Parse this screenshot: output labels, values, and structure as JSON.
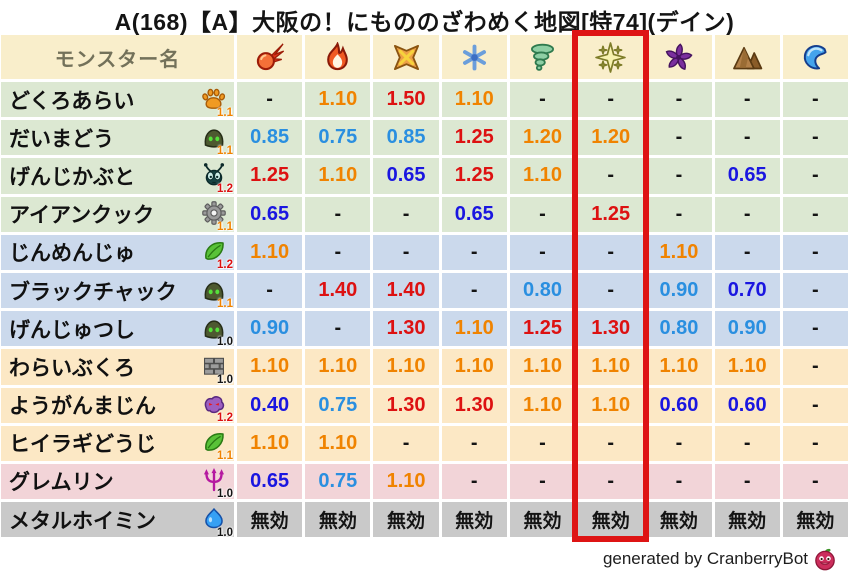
{
  "title": "A(168)【A】大阪の！にもののざわめく地図[特74](デイン)",
  "footer": {
    "credit": "generated by CranberryBot",
    "icon": "cranberry"
  },
  "colors": {
    "accent_red_box": "#de1414",
    "value_strong_weakness": "#dd1111",
    "value_mild_weakness": "#f08300",
    "value_mild_resist": "#2a8fe0",
    "value_strong_resist": "#1a16e0",
    "value_neutral": "#141414",
    "header_bg": "#f9eecb",
    "row_backgrounds": {
      "green": "#dce8d2",
      "blue": "#cbd9ec",
      "peach": "#fce8c5",
      "pink": "#f2d4d8",
      "gray": "#c9c9c9"
    }
  },
  "chart_data": {
    "type": "table",
    "title": "A(168)【A】大阪の！にもののざわめく地図[特74](デイン)",
    "column_header": "モンスター名",
    "element_columns": [
      "fireball",
      "flame",
      "explosion",
      "snowflake",
      "tornado",
      "spark",
      "pinwheel",
      "mountain",
      "wave"
    ],
    "highlighted_column_index": 5,
    "highlighted_column": "spark",
    "immune_label": "無効",
    "rows": [
      {
        "name": "どくろあらい",
        "family_icon": "paw",
        "modifier": "1.1",
        "row_color": "green",
        "values": [
          "-",
          "1.10",
          "1.50",
          "1.10",
          "-",
          "-",
          "-",
          "-",
          "-"
        ]
      },
      {
        "name": "だいまどう",
        "family_icon": "hood",
        "modifier": "1.1",
        "row_color": "green",
        "values": [
          "0.85",
          "0.75",
          "0.85",
          "1.25",
          "1.20",
          "1.20",
          "-",
          "-",
          "-"
        ]
      },
      {
        "name": "げんじかぶと",
        "family_icon": "bug",
        "modifier": "1.2",
        "row_color": "green",
        "values": [
          "1.25",
          "1.10",
          "0.65",
          "1.25",
          "1.10",
          "-",
          "-",
          "0.65",
          "-"
        ]
      },
      {
        "name": "アイアンクック",
        "family_icon": "gear",
        "modifier": "1.1",
        "row_color": "green",
        "values": [
          "0.65",
          "-",
          "-",
          "0.65",
          "-",
          "1.25",
          "-",
          "-",
          "-"
        ]
      },
      {
        "name": "じんめんじゅ",
        "family_icon": "leaf",
        "modifier": "1.2",
        "row_color": "blue",
        "values": [
          "1.10",
          "-",
          "-",
          "-",
          "-",
          "-",
          "1.10",
          "-",
          "-"
        ]
      },
      {
        "name": "ブラックチャック",
        "family_icon": "hood",
        "modifier": "1.1",
        "row_color": "blue",
        "values": [
          "-",
          "1.40",
          "1.40",
          "-",
          "0.80",
          "-",
          "0.90",
          "0.70",
          "-"
        ]
      },
      {
        "name": "げんじゅつし",
        "family_icon": "hood",
        "modifier": "1.0",
        "row_color": "blue",
        "values": [
          "0.90",
          "-",
          "1.30",
          "1.10",
          "1.25",
          "1.30",
          "0.80",
          "0.90",
          "-"
        ]
      },
      {
        "name": "わらいぶくろ",
        "family_icon": "brick",
        "modifier": "1.0",
        "row_color": "peach",
        "values": [
          "1.10",
          "1.10",
          "1.10",
          "1.10",
          "1.10",
          "1.10",
          "1.10",
          "1.10",
          "-"
        ]
      },
      {
        "name": "ようがんまじん",
        "family_icon": "blob",
        "modifier": "1.2",
        "row_color": "peach",
        "values": [
          "0.40",
          "0.75",
          "1.30",
          "1.30",
          "1.10",
          "1.10",
          "0.60",
          "0.60",
          "-"
        ]
      },
      {
        "name": "ヒイラギどうじ",
        "family_icon": "leaf",
        "modifier": "1.1",
        "row_color": "peach",
        "values": [
          "1.10",
          "1.10",
          "-",
          "-",
          "-",
          "-",
          "-",
          "-",
          "-"
        ]
      },
      {
        "name": "グレムリン",
        "family_icon": "trident",
        "modifier": "1.0",
        "row_color": "pink",
        "values": [
          "0.65",
          "0.75",
          "1.10",
          "-",
          "-",
          "-",
          "-",
          "-",
          "-"
        ]
      },
      {
        "name": "メタルホイミン",
        "family_icon": "slime",
        "modifier": "1.0",
        "row_color": "gray",
        "values": [
          "無効",
          "無効",
          "無効",
          "無効",
          "無効",
          "無効",
          "無効",
          "無効",
          "無効"
        ]
      }
    ]
  }
}
